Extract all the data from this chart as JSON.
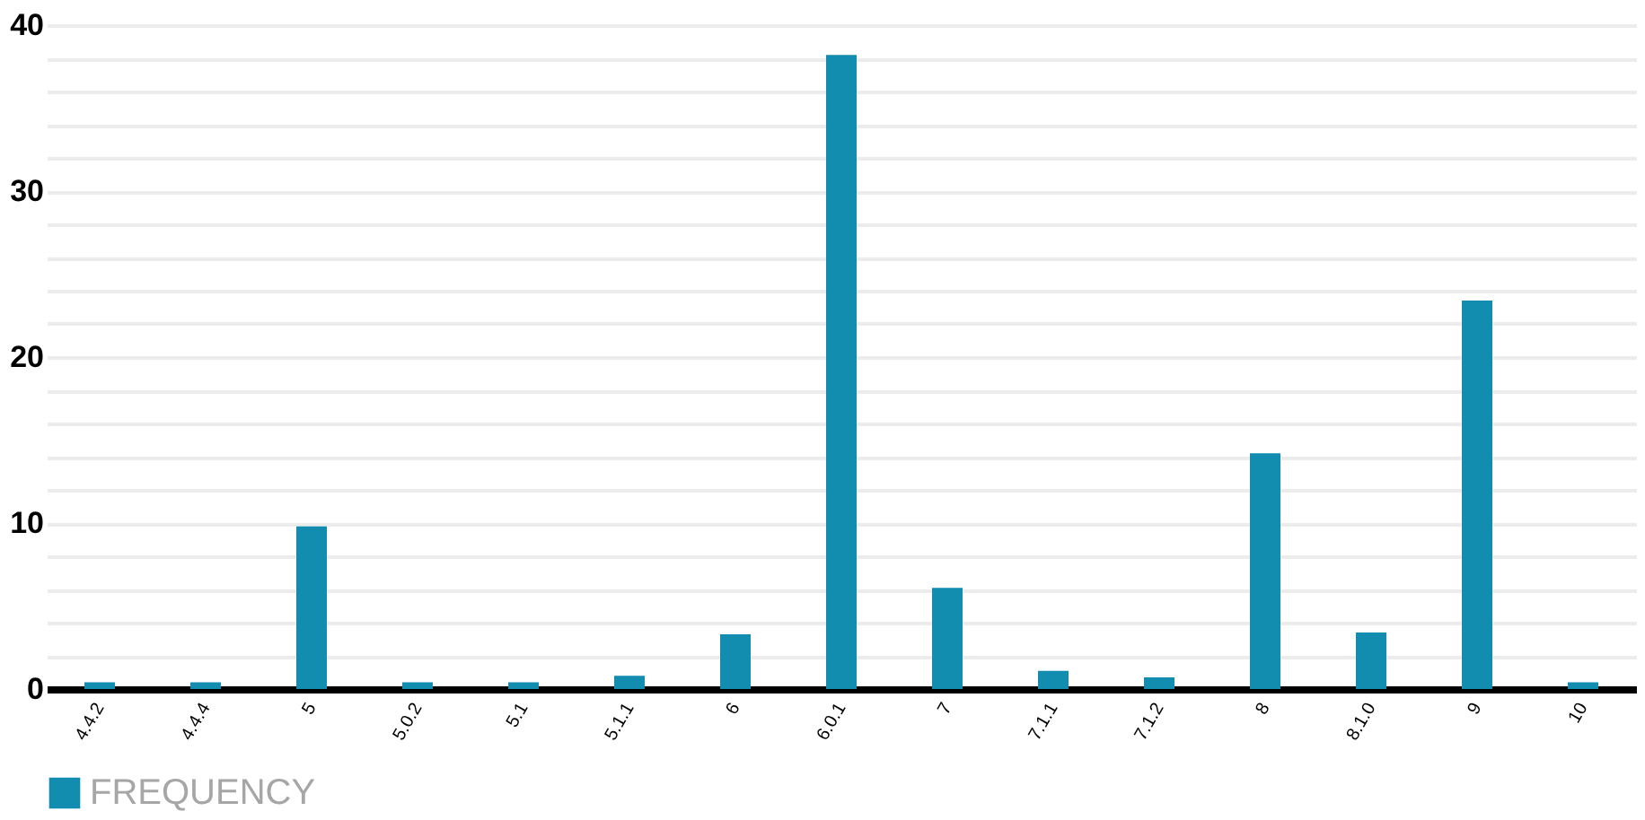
{
  "chart_data": {
    "type": "bar",
    "categories": [
      "4.4.2",
      "4.4.4",
      "5",
      "5.0.2",
      "5.1",
      "5.1.1",
      "6",
      "6.0.1",
      "7",
      "7.1.1",
      "7.1.2",
      "8",
      "8.1.0",
      "9",
      "10"
    ],
    "series": [
      {
        "name": "FREQUENCY",
        "color": "#128caf",
        "values": [
          0.4,
          0.4,
          9.8,
          0.4,
          0.4,
          0.8,
          3.3,
          38.2,
          6.1,
          1.1,
          0.7,
          14.2,
          3.4,
          23.4,
          0.4
        ]
      }
    ],
    "ylim": [
      0,
      40
    ],
    "yticks": [
      0,
      {
        "value": 2,
        "label": null
      },
      {
        "value": 4,
        "label": null
      },
      {
        "value": 6,
        "label": null
      },
      {
        "value": 8,
        "label": null
      },
      10,
      {
        "value": 12,
        "label": null
      },
      {
        "value": 14,
        "label": null
      },
      {
        "value": 16,
        "label": null
      },
      {
        "value": 18,
        "label": null
      },
      20,
      {
        "value": 22,
        "label": null
      },
      {
        "value": 24,
        "label": null
      },
      {
        "value": 26,
        "label": null
      },
      {
        "value": 28,
        "label": null
      },
      30,
      {
        "value": 32,
        "label": null
      },
      {
        "value": 34,
        "label": null
      },
      {
        "value": 36,
        "label": null
      },
      {
        "value": 38,
        "label": null
      },
      40
    ],
    "grid": "y",
    "legend": "bottom"
  }
}
